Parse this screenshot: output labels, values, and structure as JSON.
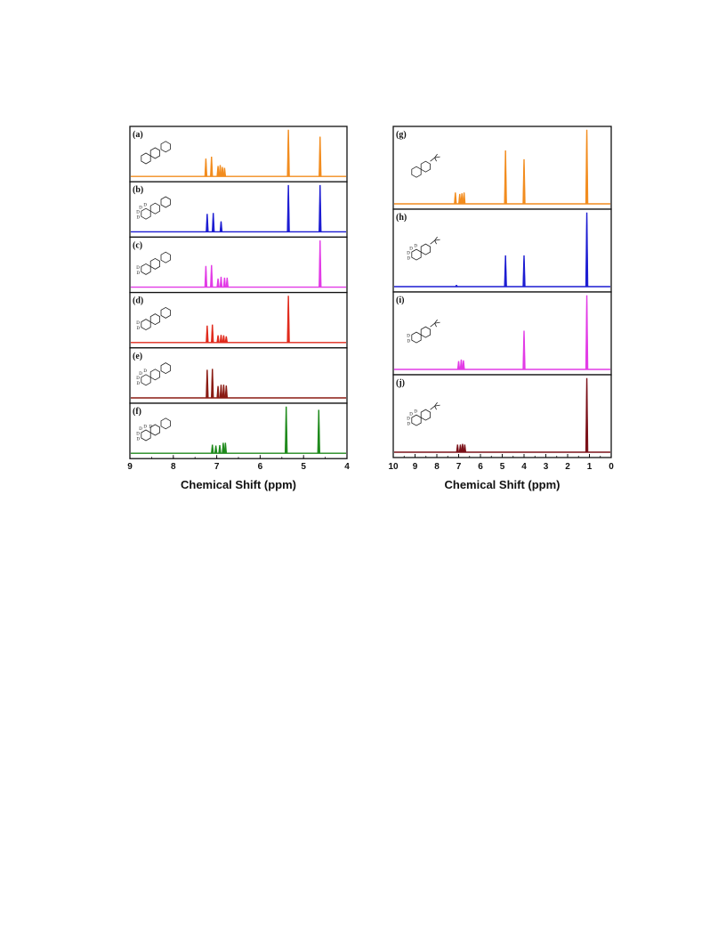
{
  "chart_data": [
    {
      "type": "line",
      "xlabel": "Chemical Shift (ppm)",
      "xlim": [
        9,
        4
      ],
      "xticks": [
        "9",
        "8",
        "7",
        "6",
        "5",
        "4"
      ],
      "panels": [
        {
          "label": "(a)",
          "color": "#f28c1e",
          "deuterated": [],
          "peaks": [
            {
              "x": 7.25,
              "y": 0.38
            },
            {
              "x": 7.12,
              "y": 0.42
            },
            {
              "x": 6.97,
              "y": 0.22
            },
            {
              "x": 6.92,
              "y": 0.24
            },
            {
              "x": 6.87,
              "y": 0.2
            },
            {
              "x": 6.82,
              "y": 0.18
            },
            {
              "x": 5.35,
              "y": 1.0
            },
            {
              "x": 4.62,
              "y": 0.85
            }
          ]
        },
        {
          "label": "(b)",
          "color": "#1c1cd2",
          "deuterated": [
            "D",
            "D",
            "D",
            "D"
          ],
          "peaks": [
            {
              "x": 7.22,
              "y": 0.38
            },
            {
              "x": 7.08,
              "y": 0.4
            },
            {
              "x": 6.9,
              "y": 0.22
            },
            {
              "x": 5.35,
              "y": 1.0
            },
            {
              "x": 4.62,
              "y": 1.0
            }
          ]
        },
        {
          "label": "(c)",
          "color": "#e23be6",
          "deuterated": [
            "D",
            "D"
          ],
          "peaks": [
            {
              "x": 7.25,
              "y": 0.45
            },
            {
              "x": 7.12,
              "y": 0.47
            },
            {
              "x": 6.97,
              "y": 0.18
            },
            {
              "x": 6.9,
              "y": 0.22
            },
            {
              "x": 6.82,
              "y": 0.2
            },
            {
              "x": 6.76,
              "y": 0.2
            },
            {
              "x": 4.62,
              "y": 1.0
            }
          ]
        },
        {
          "label": "(d)",
          "color": "#e02a1c",
          "deuterated": [
            "D",
            "D"
          ],
          "peaks": [
            {
              "x": 7.22,
              "y": 0.36
            },
            {
              "x": 7.1,
              "y": 0.38
            },
            {
              "x": 6.97,
              "y": 0.15
            },
            {
              "x": 6.9,
              "y": 0.16
            },
            {
              "x": 6.84,
              "y": 0.15
            },
            {
              "x": 6.78,
              "y": 0.13
            },
            {
              "x": 5.35,
              "y": 1.0
            }
          ]
        },
        {
          "label": "(e)",
          "color": "#8a1a12",
          "deuterated": [
            "D",
            "D",
            "D",
            "D"
          ],
          "peaks": [
            {
              "x": 7.22,
              "y": 0.6
            },
            {
              "x": 7.1,
              "y": 0.62
            },
            {
              "x": 6.97,
              "y": 0.25
            },
            {
              "x": 6.9,
              "y": 0.28
            },
            {
              "x": 6.84,
              "y": 0.28
            },
            {
              "x": 6.78,
              "y": 0.26
            }
          ]
        },
        {
          "label": "(f)",
          "color": "#1f8a1c",
          "deuterated": [
            "D",
            "D",
            "D",
            "D",
            "D"
          ],
          "peaks": [
            {
              "x": 7.1,
              "y": 0.18
            },
            {
              "x": 7.02,
              "y": 0.16
            },
            {
              "x": 6.93,
              "y": 0.17
            },
            {
              "x": 6.85,
              "y": 0.22
            },
            {
              "x": 6.8,
              "y": 0.22
            },
            {
              "x": 5.4,
              "y": 1.0
            },
            {
              "x": 4.65,
              "y": 0.93
            }
          ]
        }
      ]
    },
    {
      "type": "line",
      "xlabel": "Chemical Shift (ppm)",
      "xlim": [
        10,
        0
      ],
      "xticks": [
        "10",
        "9",
        "8",
        "7",
        "6",
        "5",
        "4",
        "3",
        "2",
        "1",
        "0"
      ],
      "panels": [
        {
          "label": "(g)",
          "color": "#f28c1e",
          "deuterated": [],
          "peaks": [
            {
              "x": 7.15,
              "y": 0.15
            },
            {
              "x": 6.95,
              "y": 0.13
            },
            {
              "x": 6.85,
              "y": 0.14
            },
            {
              "x": 6.75,
              "y": 0.15
            },
            {
              "x": 4.85,
              "y": 0.72
            },
            {
              "x": 4.0,
              "y": 0.6
            },
            {
              "x": 1.12,
              "y": 1.0
            }
          ]
        },
        {
          "label": "(h)",
          "color": "#1c1cd2",
          "deuterated": [
            "D",
            "D",
            "D",
            "D"
          ],
          "peaks": [
            {
              "x": 7.1,
              "y": 0.02
            },
            {
              "x": 4.85,
              "y": 0.42
            },
            {
              "x": 4.0,
              "y": 0.42
            },
            {
              "x": 1.12,
              "y": 1.0
            }
          ]
        },
        {
          "label": "(i)",
          "color": "#e23be6",
          "deuterated": [
            "D",
            "D"
          ],
          "peaks": [
            {
              "x": 7.0,
              "y": 0.11
            },
            {
              "x": 6.88,
              "y": 0.13
            },
            {
              "x": 6.78,
              "y": 0.12
            },
            {
              "x": 4.0,
              "y": 0.52
            },
            {
              "x": 1.12,
              "y": 1.0
            }
          ]
        },
        {
          "label": "(j)",
          "color": "#7a1018",
          "deuterated": [
            "D",
            "D",
            "D",
            "D"
          ],
          "peaks": [
            {
              "x": 7.05,
              "y": 0.1
            },
            {
              "x": 6.92,
              "y": 0.1
            },
            {
              "x": 6.82,
              "y": 0.11
            },
            {
              "x": 6.72,
              "y": 0.1
            },
            {
              "x": 1.12,
              "y": 1.0
            }
          ]
        }
      ]
    }
  ]
}
